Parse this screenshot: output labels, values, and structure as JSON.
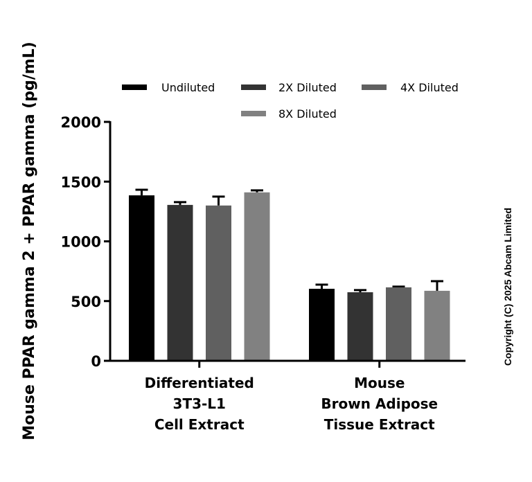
{
  "chart_data": {
    "type": "bar",
    "title": "",
    "xlabel": "",
    "ylabel": "Mouse PPAR gamma 2 + PPAR gamma (pg/mL)",
    "ylim": [
      0,
      2000
    ],
    "yticks": [
      0,
      500,
      1000,
      1500,
      2000
    ],
    "grid": false,
    "legend_position": "top",
    "categories": [
      [
        "Differentiated",
        "3T3-L1",
        "Cell Extract"
      ],
      [
        "Mouse",
        "Brown Adipose",
        "Tissue Extract"
      ]
    ],
    "category_names": [
      "Differentiated 3T3-L1 Cell Extract",
      "Mouse Brown Adipose Tissue Extract"
    ],
    "series": [
      {
        "name": "Undiluted",
        "color": "#000000",
        "values": [
          1385,
          603
        ],
        "error": [
          47,
          35
        ]
      },
      {
        "name": "2X Diluted",
        "color": "#333333",
        "values": [
          1305,
          574
        ],
        "error": [
          23,
          18
        ]
      },
      {
        "name": "4X Diluted",
        "color": "#606060",
        "values": [
          1300,
          615
        ],
        "error": [
          75,
          6
        ]
      },
      {
        "name": "8X Diluted",
        "color": "#818181",
        "values": [
          1410,
          586
        ],
        "error": [
          17,
          81
        ]
      }
    ]
  },
  "copyright": "Copyright (C) 2025 Abcam Limited"
}
